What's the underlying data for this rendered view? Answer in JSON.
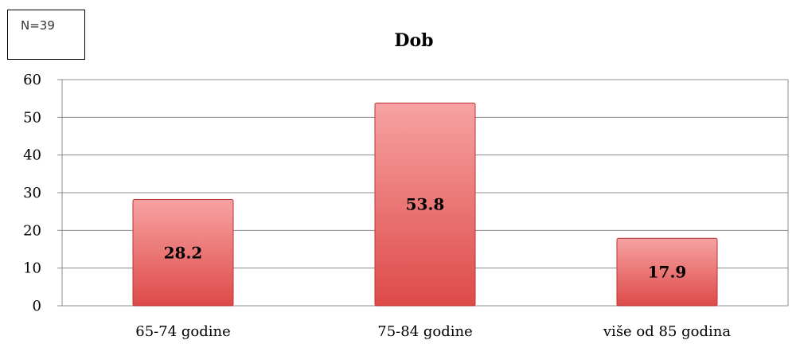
{
  "chart_data": {
    "type": "bar",
    "title": "Dob",
    "annotation": "N=39",
    "categories": [
      "65-74 godine",
      "75-84 godine",
      "više od 85 godina"
    ],
    "values": [
      28.2,
      53.8,
      17.9
    ],
    "data_labels": [
      "28.2",
      "53.8",
      "17.9"
    ],
    "ylim": [
      0,
      60
    ],
    "yticks": [
      "0",
      "10",
      "20",
      "30",
      "40",
      "50",
      "60"
    ],
    "xlabel": "",
    "ylabel": "",
    "grid": true,
    "bar_color": "#e05a5a"
  }
}
